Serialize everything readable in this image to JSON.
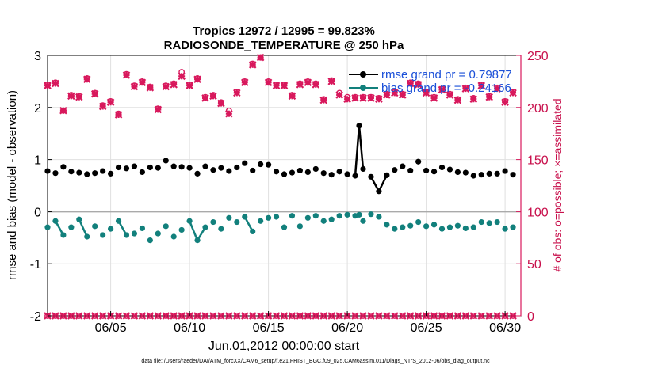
{
  "chart_data": {
    "type": "line",
    "title_line1": "Tropics 12972 / 12995 = 99.823%",
    "title_line2": "RADIOSONDE_TEMPERATURE @ 250 hPa",
    "ylabel_left": "rmse and bias (model - observation)",
    "ylabel_right": "# of obs: o=possible; ×=assimilated",
    "xlabel": "Jun.01,2012 00:00:00 start",
    "footnote": "data file: /Users/raeder/DAI/ATM_forcXX/CAM6_setup/f.e21.FHIST_BGC.f09_025.CAM6assim.011/Diags_NTrS_2012-06/obs_diag_output.nc",
    "ylim_left": [
      -2,
      3
    ],
    "ylim_right": [
      0,
      250
    ],
    "xlim": [
      1,
      31
    ],
    "grid": true,
    "yticks_left": [
      "-2",
      "-1",
      "0",
      "1",
      "2",
      "3"
    ],
    "yticks_right": [
      "0",
      "50",
      "100",
      "150",
      "200",
      "250"
    ],
    "xticks": [
      {
        "day": 5,
        "label": "06/05"
      },
      {
        "day": 10,
        "label": "06/10"
      },
      {
        "day": 15,
        "label": "06/15"
      },
      {
        "day": 20,
        "label": "06/20"
      },
      {
        "day": 25,
        "label": "06/25"
      },
      {
        "day": 30,
        "label": "06/30"
      }
    ],
    "legend": [
      {
        "name": "rmse grand pr = 0.79877",
        "color": "#000000"
      },
      {
        "name": "bias grand pr = -0.24166",
        "color": "#12807c"
      }
    ],
    "colors": {
      "rmse": "#000000",
      "bias": "#12807c",
      "obs": "#d8185c",
      "zero": "#aaaaaa",
      "grid": "#e0e0e0"
    },
    "series": [
      {
        "name": "rmse",
        "x": [
          1.0,
          1.5,
          2.0,
          2.5,
          3.0,
          3.5,
          4.0,
          4.5,
          5.0,
          5.5,
          6.0,
          6.5,
          7.0,
          7.5,
          8.0,
          8.5,
          9.0,
          9.5,
          10.0,
          10.5,
          11.0,
          11.5,
          12.0,
          12.5,
          13.0,
          13.5,
          14.0,
          14.5,
          15.0,
          15.5,
          16.0,
          16.5,
          17.0,
          17.5,
          18.0,
          18.5,
          19.0,
          19.5,
          20.0,
          20.5,
          20.75,
          21.0,
          21.5,
          22.0,
          22.5,
          23.0,
          23.5,
          24.0,
          24.5,
          25.0,
          25.5,
          26.0,
          26.5,
          27.0,
          27.5,
          28.0,
          28.5,
          29.0,
          29.5,
          30.0,
          30.5
        ],
        "values": [
          0.78,
          0.74,
          0.86,
          0.77,
          0.75,
          0.72,
          0.74,
          0.78,
          0.73,
          0.85,
          0.83,
          0.87,
          0.76,
          0.85,
          0.84,
          0.98,
          0.87,
          0.86,
          0.84,
          0.73,
          0.87,
          0.8,
          0.84,
          0.78,
          0.85,
          0.93,
          0.79,
          0.91,
          0.9,
          0.77,
          0.72,
          0.75,
          0.79,
          0.76,
          0.82,
          0.74,
          0.71,
          0.77,
          0.72,
          0.69,
          1.65,
          0.82,
          0.67,
          0.39,
          0.7,
          0.8,
          0.87,
          0.79,
          0.96,
          0.79,
          0.77,
          0.85,
          0.81,
          0.76,
          0.75,
          0.69,
          0.71,
          0.73,
          0.73,
          0.78,
          0.71
        ]
      },
      {
        "name": "bias",
        "x": [
          1.0,
          1.5,
          2.0,
          2.5,
          3.0,
          3.5,
          4.0,
          4.5,
          5.0,
          5.5,
          6.0,
          6.5,
          7.0,
          7.5,
          8.0,
          8.5,
          9.0,
          9.5,
          10.0,
          10.5,
          11.0,
          11.5,
          12.0,
          12.5,
          13.0,
          13.5,
          14.0,
          14.5,
          15.0,
          15.5,
          16.0,
          16.5,
          17.0,
          17.5,
          18.0,
          18.5,
          19.0,
          19.5,
          20.0,
          20.5,
          20.75,
          21.0,
          21.5,
          22.0,
          22.5,
          23.0,
          23.5,
          24.0,
          24.5,
          25.0,
          25.5,
          26.0,
          26.5,
          27.0,
          27.5,
          28.0,
          28.5,
          29.0,
          29.5,
          30.0,
          30.5
        ],
        "values": [
          -0.3,
          -0.18,
          -0.45,
          -0.3,
          -0.15,
          -0.48,
          -0.28,
          -0.45,
          -0.33,
          -0.18,
          -0.45,
          -0.42,
          -0.32,
          -0.55,
          -0.42,
          -0.28,
          -0.48,
          -0.35,
          -0.18,
          -0.55,
          -0.3,
          -0.2,
          -0.33,
          -0.12,
          -0.2,
          -0.1,
          -0.38,
          -0.18,
          -0.12,
          -0.1,
          -0.3,
          -0.08,
          -0.28,
          -0.12,
          -0.08,
          -0.18,
          -0.15,
          -0.08,
          -0.06,
          -0.08,
          -0.06,
          -0.18,
          -0.05,
          -0.1,
          -0.25,
          -0.33,
          -0.3,
          -0.27,
          -0.2,
          -0.28,
          -0.25,
          -0.33,
          -0.3,
          -0.27,
          -0.32,
          -0.3,
          -0.2,
          -0.22,
          -0.2,
          -0.33,
          -0.3
        ]
      },
      {
        "name": "obs_possible",
        "x": [
          1.0,
          1.5,
          2.0,
          2.5,
          3.0,
          3.5,
          4.0,
          4.5,
          5.0,
          5.5,
          6.0,
          6.5,
          7.0,
          7.5,
          8.0,
          8.5,
          9.0,
          9.5,
          10.0,
          10.5,
          11.0,
          11.5,
          12.0,
          12.5,
          13.0,
          13.5,
          14.0,
          14.5,
          15.0,
          15.5,
          16.0,
          16.5,
          17.0,
          17.5,
          18.0,
          18.5,
          19.0,
          19.5,
          20.0,
          20.5,
          21.0,
          21.5,
          22.0,
          22.5,
          23.0,
          23.5,
          24.0,
          24.5,
          25.0,
          25.5,
          26.0,
          26.5,
          27.0,
          27.5,
          28.0,
          28.5,
          29.0,
          29.5,
          30.0,
          30.5
        ],
        "values": [
          222,
          224,
          197,
          212,
          211,
          228,
          214,
          202,
          206,
          194,
          232,
          221,
          225,
          220,
          199,
          221,
          223,
          234,
          222,
          228,
          210,
          212,
          205,
          197,
          215,
          225,
          242,
          248,
          225,
          222,
          222,
          212,
          223,
          225,
          223,
          208,
          226,
          214,
          210,
          210,
          210,
          210,
          209,
          213,
          215,
          213,
          224,
          223,
          215,
          210,
          218,
          213,
          208,
          219,
          209,
          222,
          211,
          219,
          206,
          215
        ]
      },
      {
        "name": "obs_assimilated",
        "x": [
          1.0,
          1.5,
          2.0,
          2.5,
          3.0,
          3.5,
          4.0,
          4.5,
          5.0,
          5.5,
          6.0,
          6.5,
          7.0,
          7.5,
          8.0,
          8.5,
          9.0,
          9.5,
          10.0,
          10.5,
          11.0,
          11.5,
          12.0,
          12.5,
          13.0,
          13.5,
          14.0,
          14.5,
          15.0,
          15.5,
          16.0,
          16.5,
          17.0,
          17.5,
          18.0,
          18.5,
          19.0,
          19.5,
          20.0,
          20.5,
          21.0,
          21.5,
          22.0,
          22.5,
          23.0,
          23.5,
          24.0,
          24.5,
          25.0,
          25.5,
          26.0,
          26.5,
          27.0,
          27.5,
          28.0,
          28.5,
          29.0,
          29.5,
          30.0,
          30.5
        ],
        "values": [
          221,
          223,
          197,
          211,
          210,
          227,
          213,
          201,
          205,
          193,
          231,
          220,
          224,
          219,
          198,
          220,
          222,
          230,
          221,
          227,
          209,
          211,
          204,
          194,
          214,
          224,
          241,
          248,
          224,
          221,
          221,
          211,
          222,
          224,
          222,
          207,
          225,
          212,
          208,
          209,
          209,
          209,
          208,
          212,
          214,
          212,
          223,
          222,
          214,
          209,
          217,
          212,
          207,
          218,
          208,
          221,
          210,
          218,
          205,
          214
        ]
      }
    ]
  }
}
